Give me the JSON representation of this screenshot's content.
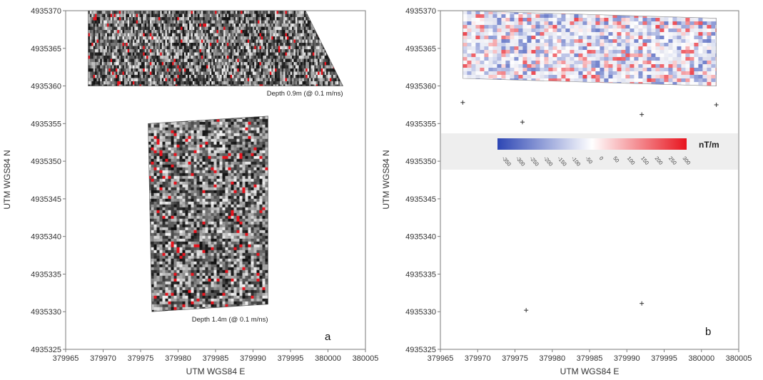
{
  "chart_data": [
    {
      "type": "heatmap",
      "panel_label": "a",
      "xlabel": "UTM WGS84 E",
      "ylabel": "UTM WGS84 N",
      "xlim": [
        379965,
        380005
      ],
      "ylim": [
        4935325,
        4935370
      ],
      "xticks": [
        "379965",
        "379970",
        "379975",
        "379980",
        "379985",
        "379990",
        "379995",
        "380000",
        "380005"
      ],
      "yticks": [
        "4935325",
        "4935330",
        "4935335",
        "4935340",
        "4935345",
        "4935350",
        "4935355",
        "4935360",
        "4935365",
        "4935370"
      ],
      "grid": false,
      "colors": {
        "low": "#111111",
        "mid": "#f2f2f2",
        "high": "#e8141e"
      },
      "layers": [
        {
          "label": "Depth 0.9m (@ 0.1 m/ns)",
          "corners": [
            [
              379968,
              4935370
            ],
            [
              379997,
              4935370
            ],
            [
              380002,
              4935360
            ],
            [
              379968,
              4935360
            ]
          ],
          "label_at": [
            380002,
            4935359
          ]
        },
        {
          "label": "Depth 1.4m (@ 0.1 m/ns)",
          "corners": [
            [
              379976,
              4935355
            ],
            [
              379992,
              4935356
            ],
            [
              379992,
              4935331
            ],
            [
              379976.5,
              4935330
            ]
          ],
          "label_at": [
            379992,
            4935329
          ]
        }
      ]
    },
    {
      "type": "heatmap",
      "panel_label": "b",
      "xlabel": "UTM WGS84 E",
      "ylabel": "UTM WGS84 N",
      "xlim": [
        379965,
        380005
      ],
      "ylim": [
        4935325,
        4935370
      ],
      "xticks": [
        "379965",
        "379970",
        "379975",
        "379980",
        "379985",
        "379990",
        "379995",
        "380000",
        "380005"
      ],
      "yticks": [
        "4935325",
        "4935330",
        "4935335",
        "4935340",
        "4935345",
        "4935350",
        "4935355",
        "4935360",
        "4935365",
        "4935370"
      ],
      "grid": false,
      "map_corners": [
        [
          379968,
          4935370
        ],
        [
          380002,
          4935369
        ],
        [
          380002,
          4935360
        ],
        [
          379968,
          4935361
        ]
      ],
      "control_points": [
        [
          379968,
          4935357.8
        ],
        [
          379976,
          4935355.2
        ],
        [
          379992,
          4935356.2
        ],
        [
          380002,
          4935357.5
        ],
        [
          379976.5,
          4935330.2
        ],
        [
          379992,
          4935331.1
        ]
      ],
      "colorbar": {
        "unit": "nT/m",
        "min": -350,
        "max": 350,
        "ticks": [
          "-350",
          "-300",
          "-250",
          "-200",
          "-150",
          "-100",
          "-50",
          "0",
          "50",
          "100",
          "150",
          "200",
          "250",
          "300"
        ],
        "colors": {
          "low": "#2d46b4",
          "mid": "#ffffff",
          "high": "#e8141e"
        }
      }
    }
  ]
}
